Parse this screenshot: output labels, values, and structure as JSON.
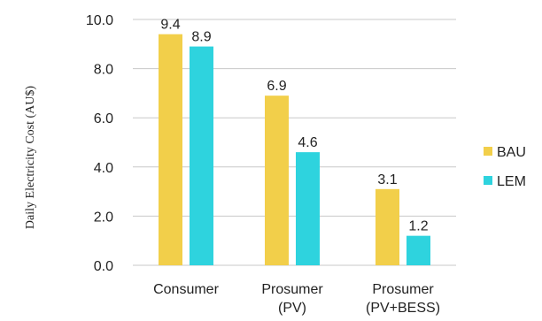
{
  "chart_data": {
    "type": "bar",
    "title": "",
    "xlabel": "",
    "ylabel": "Daily Electricity Cost (AU$)",
    "ylim": [
      0,
      10
    ],
    "yticks": [
      "0.0",
      "2.0",
      "4.0",
      "6.0",
      "8.0",
      "10.0"
    ],
    "grid": true,
    "legend_position": "right",
    "categories": [
      [
        "Consumer"
      ],
      [
        "Prosumer",
        "(PV)"
      ],
      [
        "Prosumer",
        "(PV+BESS)"
      ]
    ],
    "series": [
      {
        "name": "BAU",
        "color": "#f2cf4a",
        "values": [
          9.4,
          6.9,
          3.1
        ],
        "labels": [
          "9.4",
          "6.9",
          "3.1"
        ]
      },
      {
        "name": "LEM",
        "color": "#2ed3de",
        "values": [
          8.9,
          4.6,
          1.2
        ],
        "labels": [
          "8.9",
          "4.6",
          "1.2"
        ]
      }
    ]
  }
}
